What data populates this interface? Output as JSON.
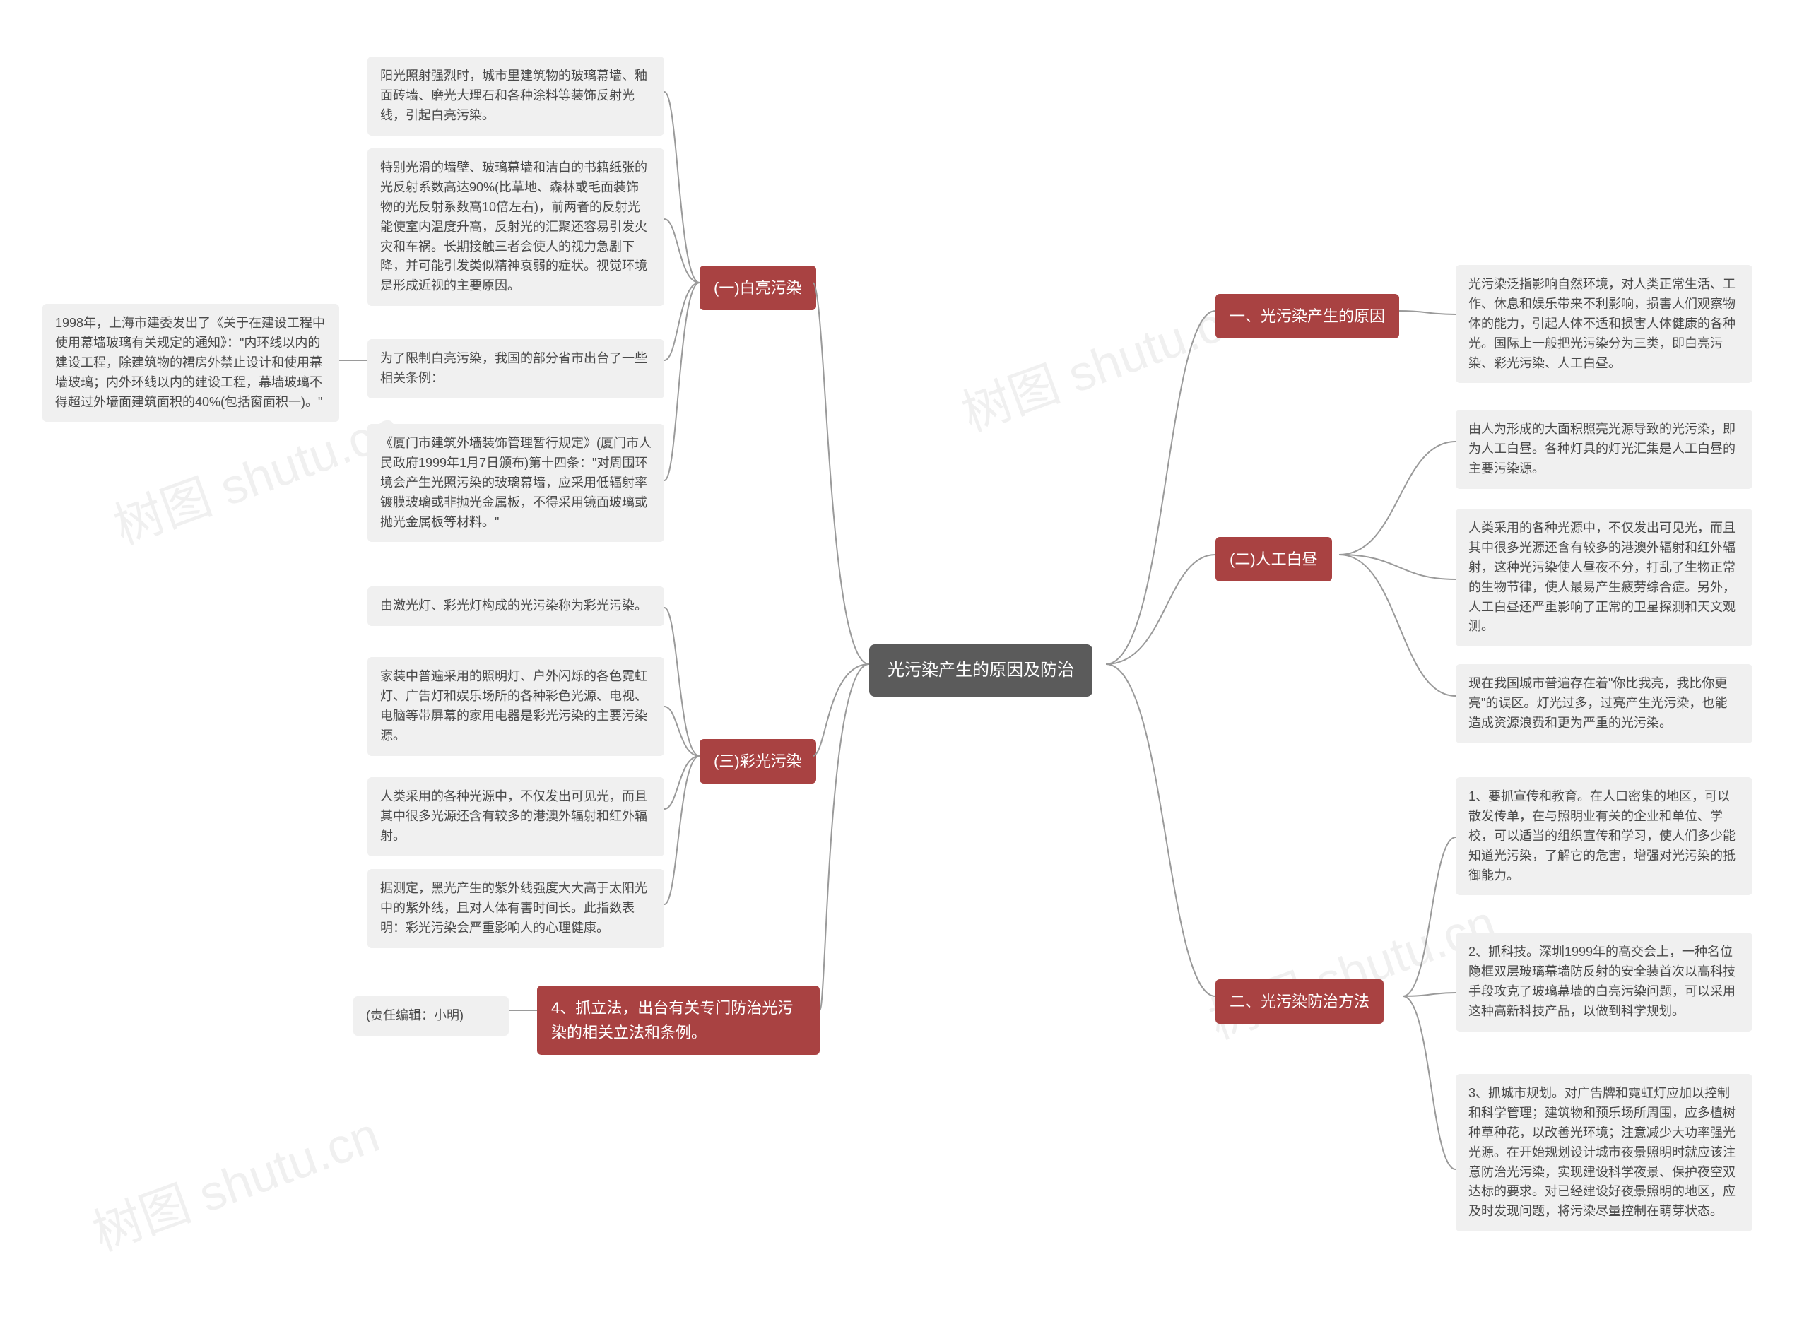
{
  "watermark_text": "树图 shutu.cn",
  "colors": {
    "root_bg": "#5b5b5b",
    "branch_bg": "#a94242",
    "leaf_bg": "#f0f0f0",
    "text_light": "#ffffff",
    "text_dark": "#4a4a4a",
    "connector": "#9a9a9a",
    "background": "#ffffff"
  },
  "root": {
    "label": "光污染产生的原因及防治"
  },
  "right": {
    "r1": {
      "label": "一、光污染产生的原因",
      "leaves": {
        "r1a": "光污染泛指影响自然环境，对人类正常生活、工作、休息和娱乐带来不利影响，损害人们观察物体的能力，引起人体不适和损害人体健康的各种光。国际上一般把光污染分为三类，即白亮污染、彩光污染、人工白昼。"
      }
    },
    "r2": {
      "label": "(二)人工白昼",
      "leaves": {
        "r2a": "由人为形成的大面积照亮光源导致的光污染，即为人工白昼。各种灯具的灯光汇集是人工白昼的主要污染源。",
        "r2b": "人类采用的各种光源中，不仅发出可见光，而且其中很多光源还含有较多的港澳外辐射和红外辐射，这种光污染使人昼夜不分，打乱了生物正常的生物节律，使人最易产生疲劳综合症。另外，人工白昼还严重影响了正常的卫星探测和天文观测。",
        "r2c": "现在我国城市普遍存在着\"你比我亮，我比你更亮\"的误区。灯光过多，过亮产生光污染，也能造成资源浪费和更为严重的光污染。"
      }
    },
    "r3": {
      "label": "二、光污染防治方法",
      "leaves": {
        "r3a": "1、要抓宣传和教育。在人口密集的地区，可以散发传单，在与照明业有关的企业和单位、学校，可以适当的组织宣传和学习，使人们多少能知道光污染，了解它的危害，增强对光污染的抵御能力。",
        "r3b": "2、抓科技。深圳1999年的高交会上，一种名位隐框双层玻璃幕墙防反射的安全装首次以高科技手段攻克了玻璃幕墙的白亮污染问题，可以采用这种高新科技产品，以做到科学规划。",
        "r3c": "3、抓城市规划。对广告牌和霓虹灯应加以控制和科学管理；建筑物和预乐场所周围，应多植树种草种花，以改善光环境；注意减少大功率强光光源。在开始规划设计城市夜景照明时就应该注意防治光污染，实现建设科学夜景、保护夜空双达标的要求。对已经建设好夜景照明的地区，应及时发现问题，将污染尽量控制在萌芽状态。"
      }
    }
  },
  "left": {
    "l1": {
      "label": "(一)白亮污染",
      "leaves": {
        "l1a": "阳光照射强烈时，城市里建筑物的玻璃幕墙、釉面砖墙、磨光大理石和各种涂料等装饰反射光线，引起白亮污染。",
        "l1b": "特别光滑的墙壁、玻璃幕墙和洁白的书籍纸张的光反射系数高达90%(比草地、森林或毛面装饰物的光反射系数高10倍左右)，前两者的反射光能使室内温度升高，反射光的汇聚还容易引发火灾和车祸。长期接触三者会使人的视力急剧下降，并可能引发类似精神衰弱的症状。视觉环境是形成近视的主要原因。",
        "l1c": "为了限制白亮污染，我国的部分省市出台了一些相关条例：",
        "l1c_sub": "1998年，上海市建委发出了《关于在建设工程中使用幕墙玻璃有关规定的通知》：\"内环线以内的建设工程，除建筑物的裙房外禁止设计和使用幕墙玻璃；内外环线以内的建设工程，幕墙玻璃不得超过外墙面建筑面积的40%(包括窗面积一)。\"",
        "l1d": "《厦门市建筑外墙装饰管理暂行规定》(厦门市人民政府1999年1月7日颁布)第十四条：\"对周围环境会产生光照污染的玻璃幕墙，应采用低辐射率镀膜玻璃或非抛光金属板，不得采用镜面玻璃或抛光金属板等材料。\""
      }
    },
    "l2": {
      "label": "(三)彩光污染",
      "leaves": {
        "l2a": "由激光灯、彩光灯构成的光污染称为彩光污染。",
        "l2b": "家装中普遍采用的照明灯、户外闪烁的各色霓虹灯、广告灯和娱乐场所的各种彩色光源、电视、电脑等带屏幕的家用电器是彩光污染的主要污染源。",
        "l2c": "人类采用的各种光源中，不仅发出可见光，而且其中很多光源还含有较多的港澳外辐射和红外辐射。",
        "l2d": "据测定，黑光产生的紫外线强度大大高于太阳光中的紫外线，且对人体有害时间长。此指数表明：彩光污染会严重影响人的心理健康。"
      }
    },
    "l3": {
      "label": "4、抓立法，出台有关专门防治光污染的相关立法和条例。",
      "leaves": {
        "l3a": "(责任编辑：小明)"
      }
    }
  }
}
